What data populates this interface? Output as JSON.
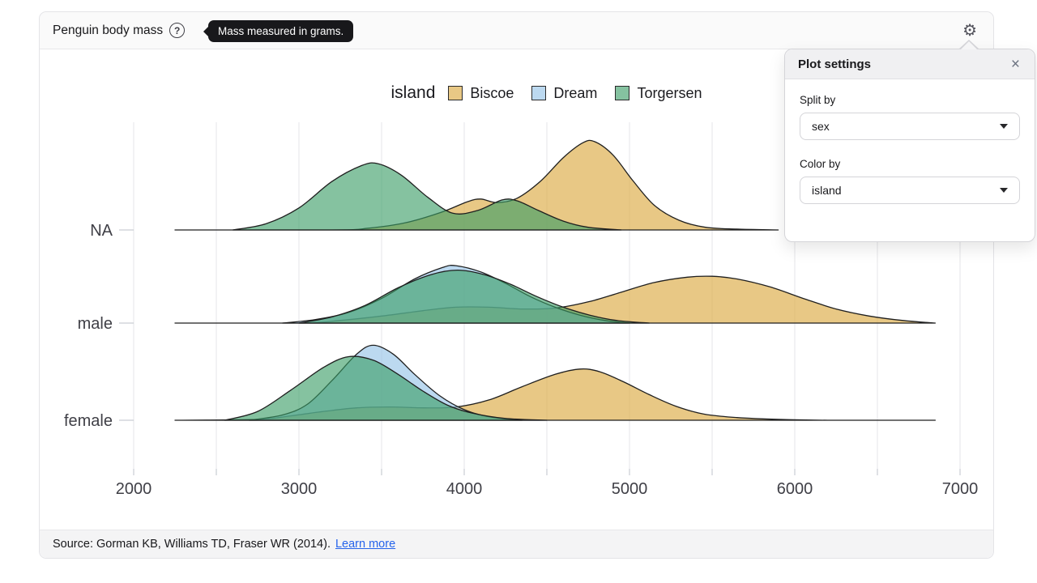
{
  "header": {
    "title": "Penguin body mass",
    "help_icon": "question-mark-circle-icon",
    "tooltip": "Mass measured in grams.",
    "gear_icon": "gear-icon",
    "gear_glyph": "⚙"
  },
  "settings_panel": {
    "title": "Plot settings",
    "close_glyph": "×",
    "fields": [
      {
        "label": "Split by",
        "value": "sex"
      },
      {
        "label": "Color by",
        "value": "island"
      }
    ]
  },
  "footer": {
    "source_text": "Source: Gorman KB, Williams TD, Fraser WR (2014).",
    "link_label": "Learn more"
  },
  "colors": {
    "link": "#2563eb",
    "outline": "#1f1f1f",
    "axis_text": "#3f3f46",
    "gridline": "#e9e9ec",
    "tick": "#c9cdd3"
  },
  "chart_data": {
    "type": "area",
    "subtype": "ridgeline-density",
    "legend_title": "island",
    "legend_position": "top-center",
    "grid": "vertical-only",
    "fill_opacity": 0.62,
    "x_axis": {
      "label": "",
      "unit": "grams",
      "min": 2000,
      "max": 7000,
      "ticks": [
        2000,
        3000,
        4000,
        5000,
        6000,
        7000
      ],
      "gridline_step": 500
    },
    "rows": [
      {
        "key": "NA",
        "label": "NA"
      },
      {
        "key": "male",
        "label": "male"
      },
      {
        "key": "female",
        "label": "female"
      }
    ],
    "series": [
      {
        "name": "Biscoe",
        "color": "#daa63a",
        "densities": {
          "NA": [
            [
              2250,
              0
            ],
            [
              3200,
              0
            ],
            [
              3420,
              0.02
            ],
            [
              3640,
              0.08
            ],
            [
              3860,
              0.2
            ],
            [
              4020,
              0.32
            ],
            [
              4100,
              0.35
            ],
            [
              4200,
              0.31
            ],
            [
              4320,
              0.36
            ],
            [
              4460,
              0.55
            ],
            [
              4600,
              0.82
            ],
            [
              4720,
              0.99
            ],
            [
              4790,
              1.0
            ],
            [
              4900,
              0.85
            ],
            [
              5020,
              0.56
            ],
            [
              5150,
              0.28
            ],
            [
              5300,
              0.11
            ],
            [
              5460,
              0.03
            ],
            [
              5650,
              0.01
            ],
            [
              5900,
              0
            ]
          ],
          "male": [
            [
              2250,
              0
            ],
            [
              3000,
              0
            ],
            [
              3250,
              0.03
            ],
            [
              3500,
              0.08
            ],
            [
              3750,
              0.14
            ],
            [
              3950,
              0.18
            ],
            [
              4150,
              0.18
            ],
            [
              4350,
              0.16
            ],
            [
              4550,
              0.17
            ],
            [
              4750,
              0.24
            ],
            [
              4950,
              0.35
            ],
            [
              5150,
              0.46
            ],
            [
              5350,
              0.52
            ],
            [
              5500,
              0.53
            ],
            [
              5650,
              0.5
            ],
            [
              5850,
              0.41
            ],
            [
              6050,
              0.28
            ],
            [
              6250,
              0.16
            ],
            [
              6450,
              0.08
            ],
            [
              6650,
              0.03
            ],
            [
              6850,
              0
            ]
          ],
          "female": [
            [
              2250,
              0
            ],
            [
              2750,
              0.01
            ],
            [
              2950,
              0.05
            ],
            [
              3150,
              0.1
            ],
            [
              3350,
              0.14
            ],
            [
              3550,
              0.15
            ],
            [
              3750,
              0.14
            ],
            [
              3950,
              0.15
            ],
            [
              4150,
              0.23
            ],
            [
              4350,
              0.38
            ],
            [
              4550,
              0.52
            ],
            [
              4700,
              0.58
            ],
            [
              4820,
              0.55
            ],
            [
              4970,
              0.43
            ],
            [
              5120,
              0.29
            ],
            [
              5280,
              0.16
            ],
            [
              5450,
              0.07
            ],
            [
              5650,
              0.03
            ],
            [
              5900,
              0.01
            ],
            [
              6200,
              0
            ],
            [
              6850,
              0
            ]
          ]
        }
      },
      {
        "name": "Dream",
        "color": "#93c2e7",
        "densities": {
          "NA": [],
          "male": [
            [
              2900,
              0
            ],
            [
              3100,
              0.04
            ],
            [
              3300,
              0.12
            ],
            [
              3500,
              0.28
            ],
            [
              3700,
              0.5
            ],
            [
              3870,
              0.63
            ],
            [
              3950,
              0.65
            ],
            [
              4100,
              0.58
            ],
            [
              4250,
              0.45
            ],
            [
              4400,
              0.3
            ],
            [
              4550,
              0.18
            ],
            [
              4700,
              0.09
            ],
            [
              4850,
              0.03
            ],
            [
              5000,
              0
            ]
          ],
          "female": [
            [
              2700,
              0
            ],
            [
              2900,
              0.06
            ],
            [
              3050,
              0.18
            ],
            [
              3200,
              0.45
            ],
            [
              3350,
              0.75
            ],
            [
              3450,
              0.85
            ],
            [
              3570,
              0.75
            ],
            [
              3700,
              0.52
            ],
            [
              3850,
              0.28
            ],
            [
              4000,
              0.12
            ],
            [
              4150,
              0.04
            ],
            [
              4350,
              0
            ]
          ]
        }
      },
      {
        "name": "Torgersen",
        "color": "#3a9c66",
        "densities": {
          "NA": [
            [
              2600,
              0
            ],
            [
              2800,
              0.07
            ],
            [
              3000,
              0.25
            ],
            [
              3200,
              0.55
            ],
            [
              3380,
              0.73
            ],
            [
              3480,
              0.75
            ],
            [
              3620,
              0.62
            ],
            [
              3780,
              0.37
            ],
            [
              3930,
              0.19
            ],
            [
              4080,
              0.22
            ],
            [
              4230,
              0.34
            ],
            [
              4320,
              0.33
            ],
            [
              4450,
              0.22
            ],
            [
              4600,
              0.1
            ],
            [
              4750,
              0.03
            ],
            [
              4950,
              0
            ]
          ],
          "male": [
            [
              3000,
              0
            ],
            [
              3200,
              0.07
            ],
            [
              3400,
              0.2
            ],
            [
              3600,
              0.4
            ],
            [
              3800,
              0.55
            ],
            [
              3960,
              0.6
            ],
            [
              4120,
              0.55
            ],
            [
              4280,
              0.44
            ],
            [
              4440,
              0.3
            ],
            [
              4600,
              0.18
            ],
            [
              4760,
              0.09
            ],
            [
              4920,
              0.03
            ],
            [
              5120,
              0
            ]
          ],
          "female": [
            [
              2550,
              0
            ],
            [
              2750,
              0.1
            ],
            [
              2950,
              0.34
            ],
            [
              3150,
              0.6
            ],
            [
              3300,
              0.72
            ],
            [
              3450,
              0.68
            ],
            [
              3600,
              0.52
            ],
            [
              3750,
              0.33
            ],
            [
              3900,
              0.17
            ],
            [
              4050,
              0.08
            ],
            [
              4250,
              0.02
            ],
            [
              4500,
              0
            ]
          ]
        }
      }
    ]
  }
}
